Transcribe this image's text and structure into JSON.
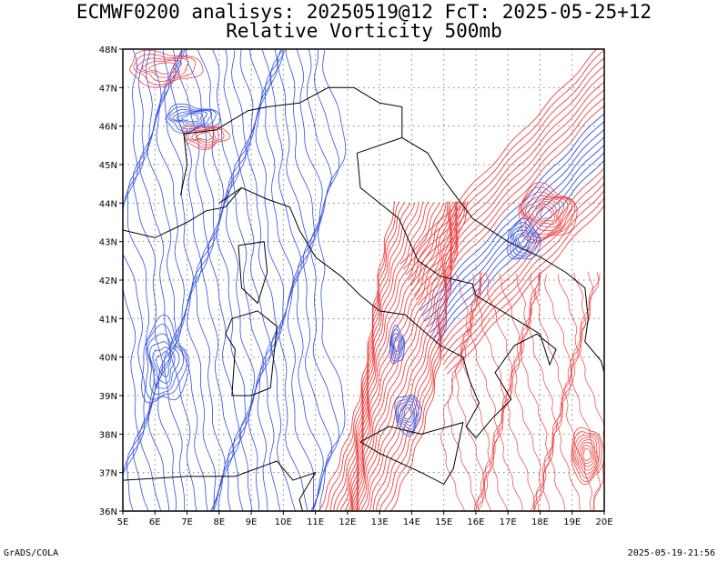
{
  "title_line1": "ECMWF0200 analisys: 20250519@12 FcT: 2025-05-25+12",
  "title_line2": "Relative Vorticity 500mb",
  "footer_left": "GrADS/COLA",
  "footer_right": "2025-05-19-21:56",
  "colors": {
    "positive_contour": "#f04040",
    "negative_contour": "#3050e0",
    "coastline": "#000000",
    "grid": "#808080",
    "background": "#ffffff"
  },
  "map": {
    "projection": "lat-lon",
    "lon_range": [
      5,
      20
    ],
    "lat_range": [
      36,
      48
    ],
    "grid": "dotted",
    "lon_ticks": [
      "5E",
      "6E",
      "7E",
      "8E",
      "9E",
      "10E",
      "11E",
      "12E",
      "13E",
      "14E",
      "15E",
      "16E",
      "17E",
      "18E",
      "19E",
      "20E"
    ],
    "lat_ticks": [
      "36N",
      "37N",
      "38N",
      "39N",
      "40N",
      "41N",
      "42N",
      "43N",
      "44N",
      "45N",
      "46N",
      "47N",
      "48N"
    ],
    "field": "relative vorticity 500 hPa",
    "positive_color_name": "red",
    "negative_color_name": "blue"
  }
}
